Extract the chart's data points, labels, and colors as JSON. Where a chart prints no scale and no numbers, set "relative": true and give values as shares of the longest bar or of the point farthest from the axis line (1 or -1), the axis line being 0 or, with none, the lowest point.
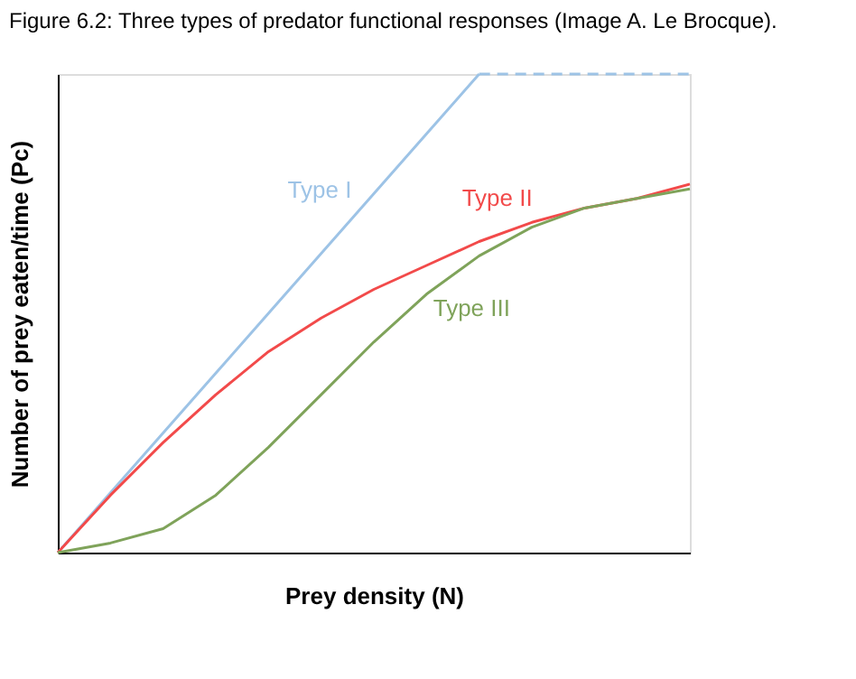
{
  "chart_data": {
    "type": "line",
    "title": "Figure 6.2: Three types of predator functional responses (Image A. Le Brocque).",
    "xlabel": "Prey density (N)",
    "ylabel": "Number of prey eaten/time (Pc)",
    "relative": true,
    "grid": false,
    "legend": false,
    "tick_labels": false,
    "marker": "none",
    "categories": [
      null,
      null,
      null,
      null,
      null,
      null,
      null,
      null,
      null,
      null,
      null,
      null,
      null
    ],
    "series": [
      {
        "name": "Type I",
        "color": "#9dc3e6",
        "values": [
          0,
          0.125,
          0.25,
          0.375,
          0.5,
          0.625,
          0.75,
          0.875,
          1,
          null,
          null,
          null,
          null
        ]
      },
      {
        "color": "#9dc3e6",
        "line_style": "dashed",
        "values": [
          null,
          null,
          null,
          null,
          null,
          null,
          null,
          null,
          1,
          1,
          1,
          1,
          1
        ]
      },
      {
        "name": "Type II",
        "color": "#f24a4a",
        "values": [
          0,
          0.12,
          0.23,
          0.33,
          0.42,
          0.49,
          0.55,
          0.6,
          0.65,
          0.69,
          0.72,
          0.74,
          0.77
        ]
      },
      {
        "name": "Type III",
        "color": "#7fa35a",
        "values": [
          0,
          0.02,
          0.05,
          0.12,
          0.22,
          0.33,
          0.44,
          0.54,
          0.62,
          0.68,
          0.72,
          0.74,
          0.76
        ]
      }
    ]
  }
}
